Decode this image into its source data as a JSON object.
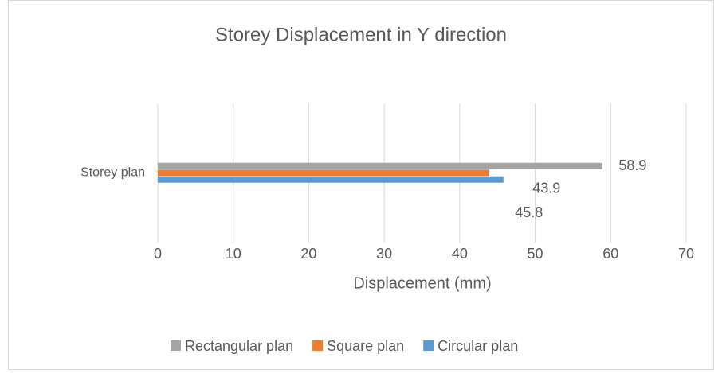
{
  "chart_data": {
    "type": "bar",
    "orientation": "horizontal",
    "title": "Storey Displacement in Y direction",
    "x_label": "Displacement (mm)",
    "categories": [
      "Storey plan"
    ],
    "series": [
      {
        "name": "Rectangular plan",
        "color": "#a5a5a5",
        "values": [
          58.9
        ]
      },
      {
        "name": "Square plan",
        "color": "#ed7d31",
        "values": [
          43.9
        ]
      },
      {
        "name": "Circular plan",
        "color": "#5b9bd5",
        "values": [
          45.8
        ]
      }
    ],
    "xlim": [
      0,
      70
    ],
    "xticks": [
      0,
      10,
      20,
      30,
      40,
      50,
      60,
      70
    ],
    "grid": true,
    "legend": "bottom",
    "data_labels": true
  }
}
